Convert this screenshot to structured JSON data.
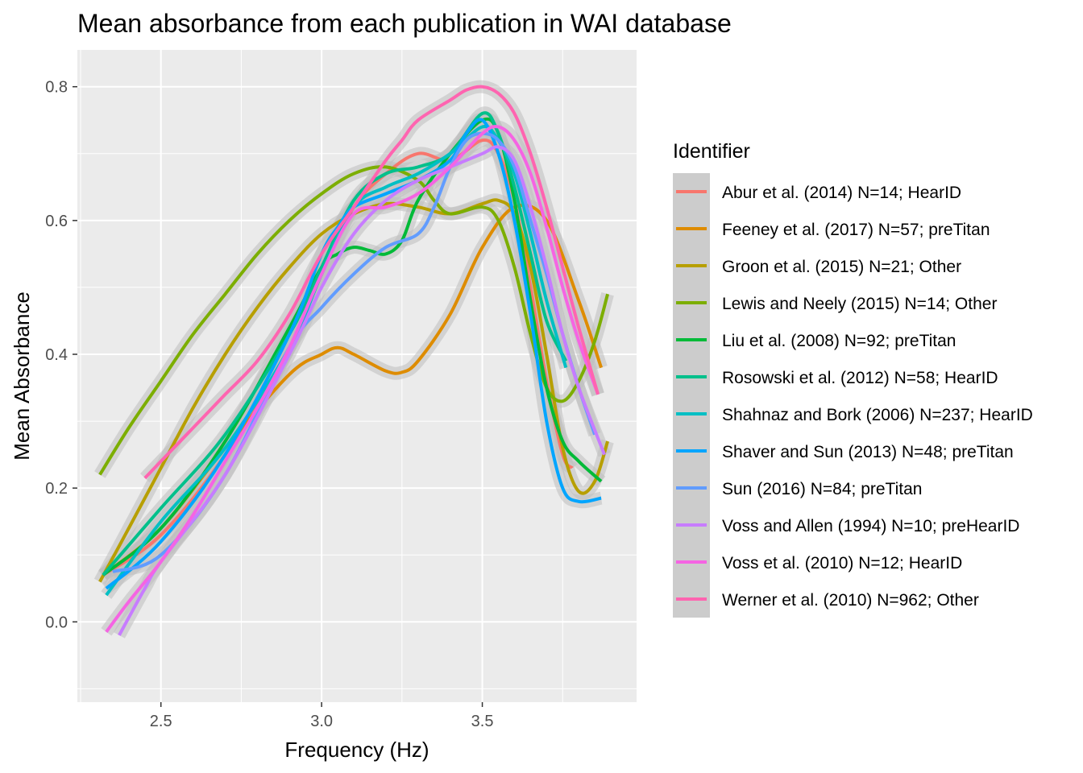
{
  "chart_data": {
    "type": "line",
    "title": "Mean absorbance from each publication in WAI database",
    "xlabel": "Frequency (Hz)",
    "ylabel": "Mean Absorbance",
    "xlim": [
      2.24,
      3.98
    ],
    "ylim": [
      -0.12,
      0.855
    ],
    "xticks": [
      2.5,
      3.0,
      3.5
    ],
    "xtick_labels": [
      "2.5",
      "3.0",
      "3.5"
    ],
    "yticks": [
      0.0,
      0.2,
      0.4,
      0.6,
      0.8
    ],
    "ytick_labels": [
      "0.0",
      "0.2",
      "0.4",
      "0.6",
      "0.8"
    ],
    "grid": true,
    "smoothed_with_confidence_band": true,
    "band_color": "#bdbdbd",
    "panel_background": "#ebebeb",
    "legend": {
      "title": "Identifier",
      "position": "right"
    },
    "series": [
      {
        "name": "Abur et al. (2014) N=14; HearID",
        "color": "#F8766D",
        "x": [
          2.32,
          2.5,
          2.7,
          2.9,
          3.0,
          3.1,
          3.2,
          3.3,
          3.4,
          3.5,
          3.55,
          3.6,
          3.65,
          3.7,
          3.75,
          3.78
        ],
        "y": [
          0.07,
          0.13,
          0.25,
          0.41,
          0.52,
          0.62,
          0.67,
          0.7,
          0.69,
          0.72,
          0.7,
          0.63,
          0.5,
          0.36,
          0.25,
          0.23
        ]
      },
      {
        "name": "Feeney et al. (2017) N=57; preTitan",
        "color": "#DE8C00",
        "x": [
          2.32,
          2.5,
          2.7,
          2.9,
          3.0,
          3.05,
          3.1,
          3.2,
          3.25,
          3.3,
          3.4,
          3.5,
          3.6,
          3.7,
          3.8,
          3.87
        ],
        "y": [
          0.07,
          0.14,
          0.26,
          0.37,
          0.4,
          0.41,
          0.4,
          0.375,
          0.373,
          0.39,
          0.46,
          0.56,
          0.62,
          0.6,
          0.48,
          0.38
        ]
      },
      {
        "name": "Groon et al. (2015) N=21; Other",
        "color": "#B79F00",
        "x": [
          2.31,
          2.4,
          2.5,
          2.6,
          2.7,
          2.8,
          2.9,
          3.0,
          3.1,
          3.2,
          3.3,
          3.4,
          3.5,
          3.55,
          3.6,
          3.65,
          3.7,
          3.75,
          3.8,
          3.85,
          3.89
        ],
        "y": [
          0.06,
          0.14,
          0.23,
          0.32,
          0.4,
          0.47,
          0.53,
          0.58,
          0.61,
          0.625,
          0.62,
          0.61,
          0.625,
          0.63,
          0.61,
          0.53,
          0.4,
          0.26,
          0.195,
          0.21,
          0.27
        ]
      },
      {
        "name": "Lewis and Neely (2015) N=14; Other",
        "color": "#7CAE00",
        "x": [
          2.31,
          2.4,
          2.5,
          2.6,
          2.7,
          2.8,
          2.9,
          3.0,
          3.1,
          3.2,
          3.3,
          3.35,
          3.4,
          3.5,
          3.55,
          3.6,
          3.65,
          3.7,
          3.75,
          3.8,
          3.85,
          3.89
        ],
        "y": [
          0.22,
          0.29,
          0.36,
          0.43,
          0.49,
          0.55,
          0.6,
          0.64,
          0.67,
          0.68,
          0.66,
          0.63,
          0.61,
          0.62,
          0.6,
          0.53,
          0.43,
          0.35,
          0.33,
          0.36,
          0.42,
          0.49
        ]
      },
      {
        "name": "Liu et al. (2008) N=92; preTitan",
        "color": "#00BA38",
        "x": [
          2.32,
          2.5,
          2.7,
          2.9,
          3.0,
          3.05,
          3.1,
          3.15,
          3.2,
          3.25,
          3.3,
          3.4,
          3.5,
          3.55,
          3.6,
          3.65,
          3.7,
          3.75,
          3.8,
          3.87
        ],
        "y": [
          0.07,
          0.14,
          0.27,
          0.44,
          0.53,
          0.55,
          0.56,
          0.555,
          0.55,
          0.57,
          0.63,
          0.7,
          0.75,
          0.73,
          0.63,
          0.48,
          0.35,
          0.27,
          0.24,
          0.21
        ]
      },
      {
        "name": "Rosowski et al. (2012) N=58; HearID",
        "color": "#00C08B",
        "x": [
          2.32,
          2.5,
          2.7,
          2.9,
          3.0,
          3.1,
          3.2,
          3.3,
          3.4,
          3.5,
          3.55,
          3.6,
          3.65,
          3.7,
          3.76
        ],
        "y": [
          0.07,
          0.17,
          0.28,
          0.43,
          0.53,
          0.63,
          0.67,
          0.68,
          0.7,
          0.76,
          0.73,
          0.65,
          0.55,
          0.45,
          0.39
        ]
      },
      {
        "name": "Shahnaz and Bork (2006) N=237; HearID",
        "color": "#00BFC4",
        "x": [
          2.33,
          2.5,
          2.7,
          2.9,
          3.0,
          3.1,
          3.2,
          3.3,
          3.4,
          3.5,
          3.55,
          3.6,
          3.65,
          3.7,
          3.76
        ],
        "y": [
          0.04,
          0.15,
          0.26,
          0.41,
          0.52,
          0.62,
          0.65,
          0.67,
          0.7,
          0.74,
          0.72,
          0.67,
          0.58,
          0.48,
          0.38
        ]
      },
      {
        "name": "Shaver and Sun (2013) N=48; preTitan",
        "color": "#00A5FF",
        "x": [
          2.33,
          2.5,
          2.7,
          2.9,
          3.0,
          3.05,
          3.1,
          3.2,
          3.3,
          3.4,
          3.45,
          3.5,
          3.55,
          3.6,
          3.65,
          3.7,
          3.75,
          3.8,
          3.87
        ],
        "y": [
          0.05,
          0.12,
          0.25,
          0.43,
          0.55,
          0.59,
          0.62,
          0.64,
          0.66,
          0.69,
          0.73,
          0.75,
          0.7,
          0.6,
          0.46,
          0.3,
          0.2,
          0.18,
          0.185
        ]
      },
      {
        "name": "Sun (2016) N=84; preTitan",
        "color": "#619CFF",
        "x": [
          2.35,
          2.5,
          2.7,
          2.9,
          3.0,
          3.1,
          3.2,
          3.3,
          3.35,
          3.4,
          3.45,
          3.5,
          3.55,
          3.6,
          3.65,
          3.7,
          3.75,
          3.8,
          3.85
        ],
        "y": [
          0.075,
          0.1,
          0.22,
          0.41,
          0.47,
          0.52,
          0.56,
          0.58,
          0.62,
          0.68,
          0.72,
          0.73,
          0.72,
          0.68,
          0.6,
          0.52,
          0.43,
          0.35,
          0.28
        ]
      },
      {
        "name": "Voss and Allen (1994) N=10; preHearID",
        "color": "#C77CFF",
        "x": [
          2.37,
          2.45,
          2.5,
          2.7,
          2.9,
          3.0,
          3.1,
          3.2,
          3.3,
          3.4,
          3.5,
          3.55,
          3.6,
          3.65,
          3.7,
          3.75,
          3.8,
          3.88
        ],
        "y": [
          -0.02,
          0.05,
          0.09,
          0.22,
          0.4,
          0.5,
          0.58,
          0.63,
          0.66,
          0.68,
          0.7,
          0.71,
          0.69,
          0.62,
          0.53,
          0.43,
          0.35,
          0.25
        ]
      },
      {
        "name": "Voss et al. (2010) N=12; HearID",
        "color": "#F564E3",
        "x": [
          2.33,
          2.4,
          2.5,
          2.6,
          2.7,
          2.8,
          2.9,
          3.0,
          3.1,
          3.2,
          3.3,
          3.4,
          3.5,
          3.55,
          3.6,
          3.65,
          3.7,
          3.75,
          3.8,
          3.86
        ],
        "y": [
          -0.015,
          0.03,
          0.09,
          0.16,
          0.24,
          0.32,
          0.41,
          0.52,
          0.61,
          0.62,
          0.64,
          0.68,
          0.73,
          0.74,
          0.72,
          0.67,
          0.59,
          0.5,
          0.42,
          0.34
        ]
      },
      {
        "name": "Werner et al. (2010) N=962; Other",
        "color": "#FF64B0",
        "x": [
          2.45,
          2.5,
          2.6,
          2.7,
          2.8,
          2.9,
          3.0,
          3.1,
          3.2,
          3.25,
          3.3,
          3.4,
          3.45,
          3.5,
          3.55,
          3.6,
          3.65,
          3.7,
          3.75,
          3.8,
          3.86
        ],
        "y": [
          0.215,
          0.24,
          0.29,
          0.34,
          0.39,
          0.46,
          0.55,
          0.62,
          0.69,
          0.72,
          0.75,
          0.78,
          0.795,
          0.8,
          0.79,
          0.76,
          0.7,
          0.62,
          0.53,
          0.44,
          0.34
        ]
      }
    ]
  }
}
